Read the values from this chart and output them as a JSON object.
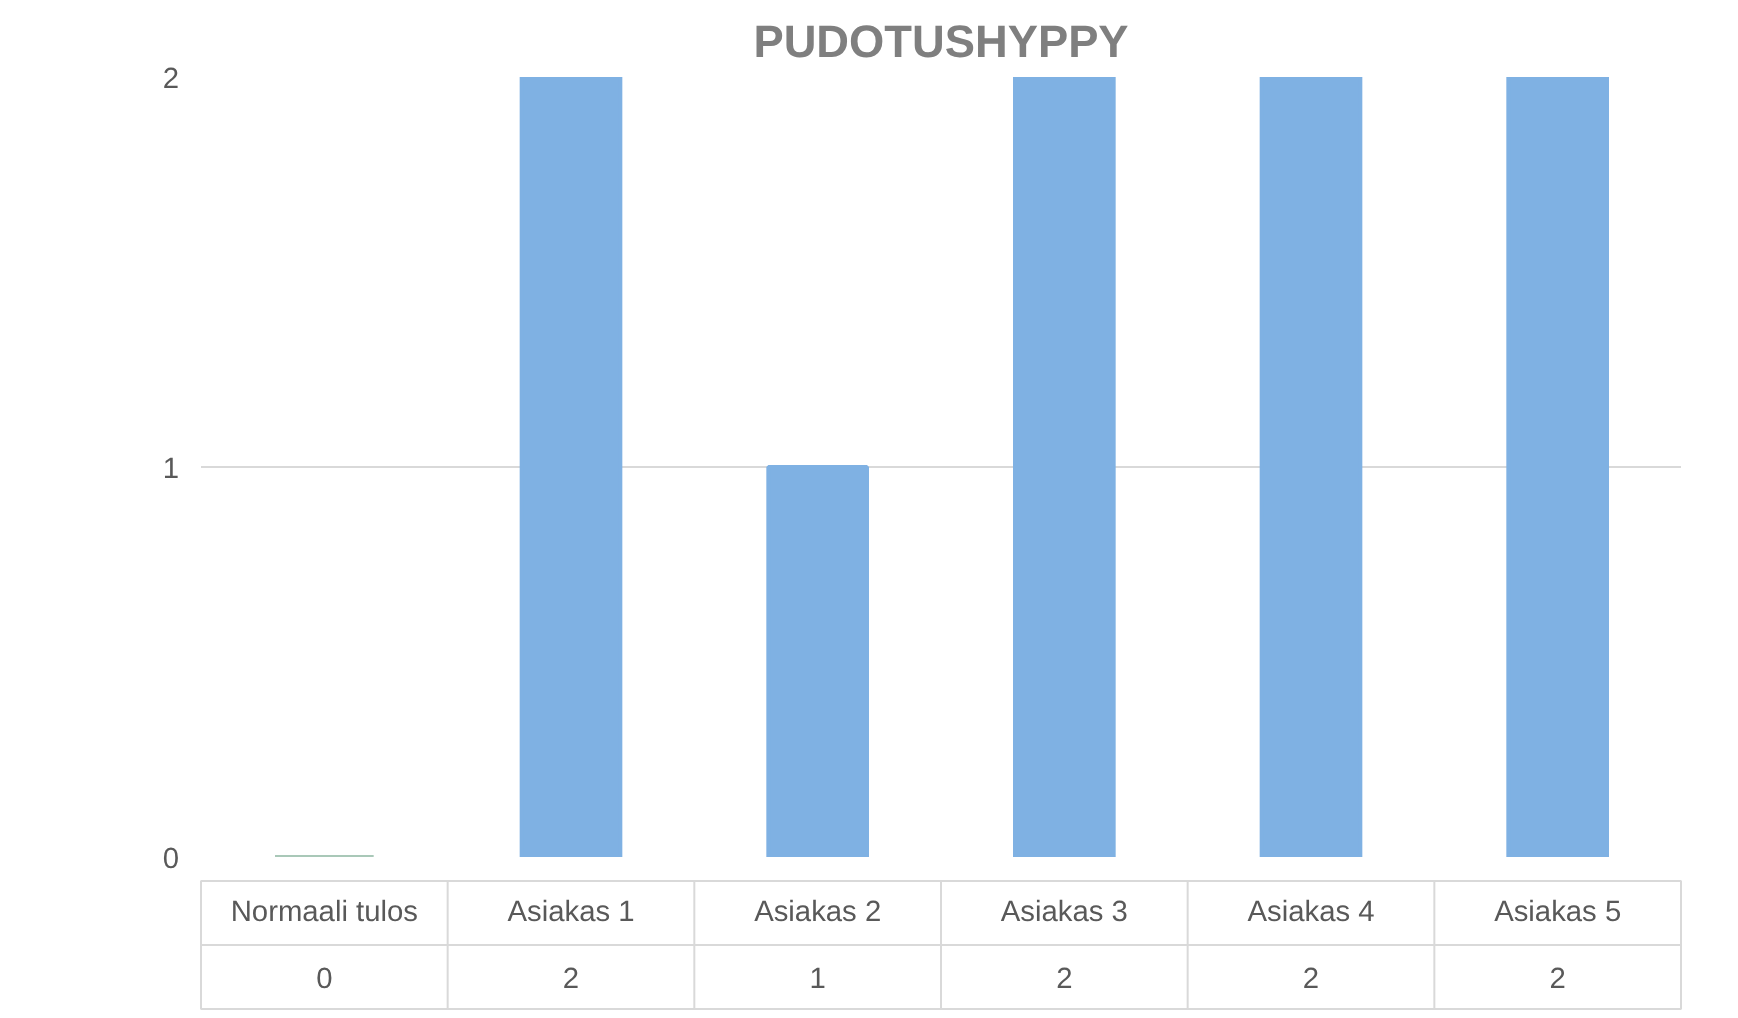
{
  "chart_data": {
    "type": "bar",
    "title": "PUDOTUSHYPPY",
    "categories": [
      "Normaali tulos",
      "Asiakas 1",
      "Asiakas 2",
      "Asiakas 3",
      "Asiakas 4",
      "Asiakas 5"
    ],
    "values": [
      0,
      2,
      1,
      2,
      2,
      2
    ],
    "colors": [
      "#a9c8b8",
      "#7fb1e3",
      "#7fb1e3",
      "#7fb1e3",
      "#7fb1e3",
      "#7fb1e3"
    ],
    "ylim": [
      0,
      2
    ],
    "yticks": [
      0,
      1,
      2
    ],
    "grid": "y",
    "data_labels": true
  }
}
